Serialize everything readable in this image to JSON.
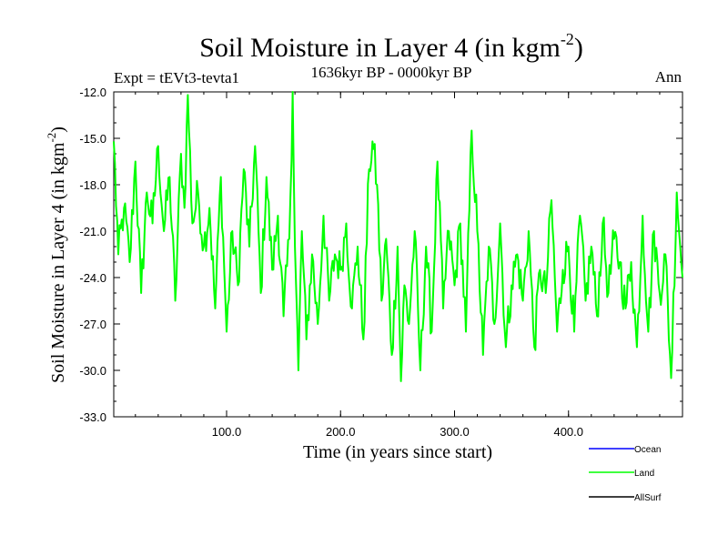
{
  "chart_data": {
    "type": "line",
    "title": {
      "main": "Soil Moisture in Layer 4 (in kgm",
      "sup": "-2",
      "close": ")"
    },
    "subtitle_left": "Expt = tEVt3-tevta1",
    "subtitle_center": "1636kyr BP - 0000kyr BP",
    "subtitle_right": "Ann",
    "xlabel": "Time (in years since start)",
    "ylabel": {
      "main": "Soil Moisture in Layer 4 (in kgm",
      "sup": "-2",
      "close": ")"
    },
    "xlim": [
      1,
      500
    ],
    "ylim": [
      -33.0,
      -12.0
    ],
    "xticks": [
      100,
      200,
      300,
      400
    ],
    "xtick_labels": [
      "100.0",
      "200.0",
      "300.0",
      "400.0"
    ],
    "yticks": [
      -12,
      -15,
      -18,
      -21,
      -24,
      -27,
      -30,
      -33
    ],
    "ytick_labels": [
      "-12.0",
      "-15.0",
      "-18.0",
      "-21.0",
      "-24.0",
      "-27.0",
      "-30.0",
      "-33.0"
    ],
    "series": [
      {
        "name": "Ocean",
        "color": "#0000ff",
        "values": []
      },
      {
        "name": "Land",
        "color": "#00ff00",
        "x": [
          1,
          5,
          10,
          15,
          20,
          25,
          30,
          35,
          40,
          45,
          50,
          55,
          60,
          63,
          66,
          70,
          75,
          80,
          85,
          90,
          95,
          100,
          105,
          110,
          115,
          120,
          125,
          130,
          135,
          140,
          145,
          150,
          155,
          158,
          160,
          163,
          166,
          170,
          175,
          180,
          185,
          190,
          195,
          200,
          205,
          210,
          215,
          220,
          225,
          228,
          232,
          236,
          240,
          245,
          250,
          253,
          256,
          260,
          265,
          270,
          275,
          280,
          285,
          290,
          295,
          300,
          305,
          310,
          315,
          320,
          325,
          330,
          335,
          340,
          345,
          350,
          355,
          360,
          365,
          370,
          375,
          380,
          385,
          390,
          395,
          400,
          405,
          410,
          415,
          420,
          425,
          430,
          435,
          440,
          445,
          450,
          455,
          460,
          465,
          470,
          475,
          480,
          485,
          490,
          495,
          500
        ],
        "values": [
          -15.2,
          -22.5,
          -19.5,
          -23.0,
          -16.5,
          -25.0,
          -18.5,
          -20.5,
          -15.5,
          -21.0,
          -17.5,
          -25.5,
          -16.0,
          -19.5,
          -12.2,
          -20.5,
          -18.5,
          -22.0,
          -19.5,
          -26.0,
          -17.5,
          -27.5,
          -21.0,
          -24.5,
          -17.0,
          -22.0,
          -15.5,
          -25.0,
          -17.5,
          -23.5,
          -20.0,
          -26.5,
          -21.5,
          -12.0,
          -22.0,
          -30.0,
          -21.0,
          -28.0,
          -22.5,
          -27.0,
          -20.0,
          -25.5,
          -22.5,
          -23.5,
          -20.5,
          -26.0,
          -22.0,
          -28.0,
          -17.0,
          -15.2,
          -18.0,
          -25.5,
          -21.5,
          -29.0,
          -22.0,
          -30.7,
          -24.5,
          -27.0,
          -21.0,
          -30.0,
          -22.0,
          -27.5,
          -16.5,
          -26.0,
          -21.0,
          -24.5,
          -20.5,
          -27.5,
          -14.5,
          -21.0,
          -29.0,
          -22.0,
          -27.0,
          -20.5,
          -28.5,
          -24.5,
          -22.5,
          -25.5,
          -21.0,
          -28.5,
          -23.5,
          -25.0,
          -19.0,
          -27.5,
          -23.5,
          -22.0,
          -27.5,
          -20.0,
          -25.5,
          -22.0,
          -26.5,
          -20.5,
          -25.0,
          -21.5,
          -23.0,
          -26.0,
          -23.0,
          -28.5,
          -20.0,
          -27.5,
          -21.0,
          -25.0,
          -22.5,
          -30.5,
          -18.5,
          -24.0
        ]
      },
      {
        "name": "AllSurf",
        "color": "#000000",
        "values": []
      }
    ],
    "legend_position": "bottom-right"
  }
}
